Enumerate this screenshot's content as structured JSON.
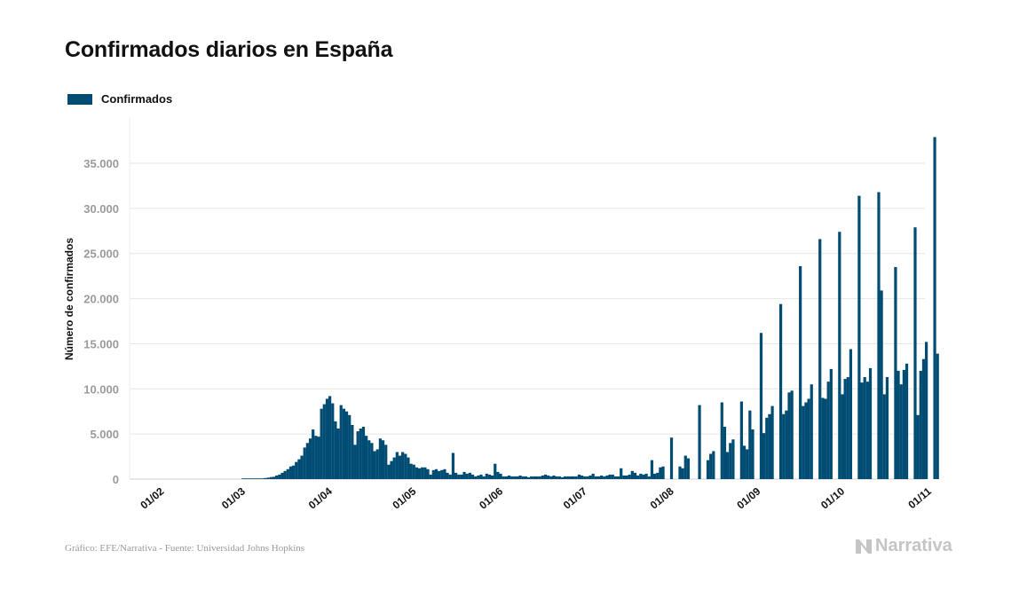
{
  "title": "Confirmados diarios en España",
  "footer": "Gráfico: EFE/Narrativa - Fuente: Universidad Johns Hopkins",
  "brand": "Narrativa",
  "brand_icon": "narrativa-logo-icon",
  "colors": {
    "bar": "#004c73",
    "grid": "#e6e6e6",
    "axis_text": "#9a9a9a"
  },
  "chart_data": {
    "type": "bar",
    "ylabel": "Número de confirmados",
    "legend": {
      "entries": [
        "Confirmados"
      ],
      "position": "top-left"
    },
    "ylim": [
      0,
      40000
    ],
    "yticks": [
      0,
      5000,
      10000,
      15000,
      20000,
      25000,
      30000,
      35000
    ],
    "ytick_labels": [
      "0",
      "5.000",
      "10.000",
      "15.000",
      "20.000",
      "25.000",
      "30.000",
      "35.000"
    ],
    "xlim": [
      "2020-01-22",
      "2020-11-01"
    ],
    "xticks": [
      "2020-02-01",
      "2020-03-01",
      "2020-04-01",
      "2020-05-01",
      "2020-06-01",
      "2020-07-01",
      "2020-08-01",
      "2020-09-01",
      "2020-10-01",
      "2020-11-01"
    ],
    "xtick_labels": [
      "01/02",
      "01/03",
      "01/04",
      "01/05",
      "01/06",
      "01/07",
      "01/08",
      "01/09",
      "01/10",
      "01/11"
    ],
    "grid": true,
    "series": [
      {
        "name": "Confirmados",
        "start": "2020-01-22",
        "values": [
          0,
          0,
          0,
          0,
          0,
          0,
          0,
          0,
          0,
          0,
          0,
          0,
          0,
          0,
          0,
          0,
          0,
          0,
          0,
          0,
          0,
          0,
          0,
          0,
          0,
          0,
          0,
          0,
          0,
          0,
          0,
          0,
          0,
          0,
          0,
          0,
          0,
          0,
          0,
          0,
          2,
          4,
          6,
          13,
          15,
          32,
          45,
          84,
          120,
          165,
          222,
          259,
          400,
          500,
          700,
          900,
          1100,
          1400,
          1500,
          1900,
          2200,
          2600,
          3500,
          4000,
          4500,
          5500,
          4800,
          4700,
          7800,
          8300,
          8900,
          9200,
          8400,
          6400,
          5600,
          8200,
          7800,
          7500,
          7100,
          6000,
          3800,
          5300,
          5600,
          5800,
          4800,
          4300,
          4000,
          3100,
          3300,
          4500,
          4300,
          3800,
          1600,
          2000,
          2400,
          3000,
          2600,
          3000,
          2800,
          2400,
          1700,
          1600,
          1300,
          1200,
          1300,
          1300,
          1100,
          500,
          1000,
          1100,
          900,
          1000,
          1100,
          700,
          500,
          2900,
          700,
          500,
          500,
          800,
          600,
          700,
          500,
          300,
          400,
          500,
          300,
          600,
          500,
          400,
          1700,
          800,
          600,
          300,
          300,
          400,
          300,
          300,
          300,
          400,
          300,
          300,
          200,
          300,
          300,
          300,
          300,
          400,
          500,
          400,
          300,
          400,
          300,
          300,
          200,
          300,
          300,
          300,
          300,
          300,
          500,
          400,
          300,
          300,
          400,
          600,
          300,
          300,
          400,
          300,
          400,
          500,
          500,
          300,
          300,
          1200,
          400,
          400,
          500,
          900,
          700,
          400,
          600,
          500,
          600,
          300,
          2100,
          600,
          700,
          1300,
          1400,
          0,
          0,
          4600,
          0,
          0,
          1400,
          1200,
          2600,
          2300,
          0,
          0,
          0,
          8200,
          0,
          0,
          2100,
          2800,
          3100,
          0,
          0,
          8500,
          5800,
          3000,
          4000,
          4400,
          0,
          0,
          8600,
          3700,
          3300,
          7600,
          5500,
          0,
          0,
          16200,
          5100,
          6800,
          7200,
          8100,
          0,
          0,
          19400,
          7200,
          7600,
          9600,
          9800,
          0,
          0,
          23600,
          8100,
          8500,
          8900,
          10500,
          0,
          0,
          26600,
          9000,
          8900,
          10800,
          12200,
          0,
          0,
          27400,
          9400,
          11100,
          11300,
          14400,
          0,
          0,
          31400,
          10700,
          11300,
          10800,
          12300,
          0,
          0,
          31800,
          20900,
          9400,
          11300,
          0,
          0,
          23500,
          12000,
          10500,
          12100,
          12800,
          0,
          0,
          27900,
          7100,
          12000,
          13300,
          15200,
          0,
          0,
          37900,
          13900
        ]
      }
    ]
  }
}
